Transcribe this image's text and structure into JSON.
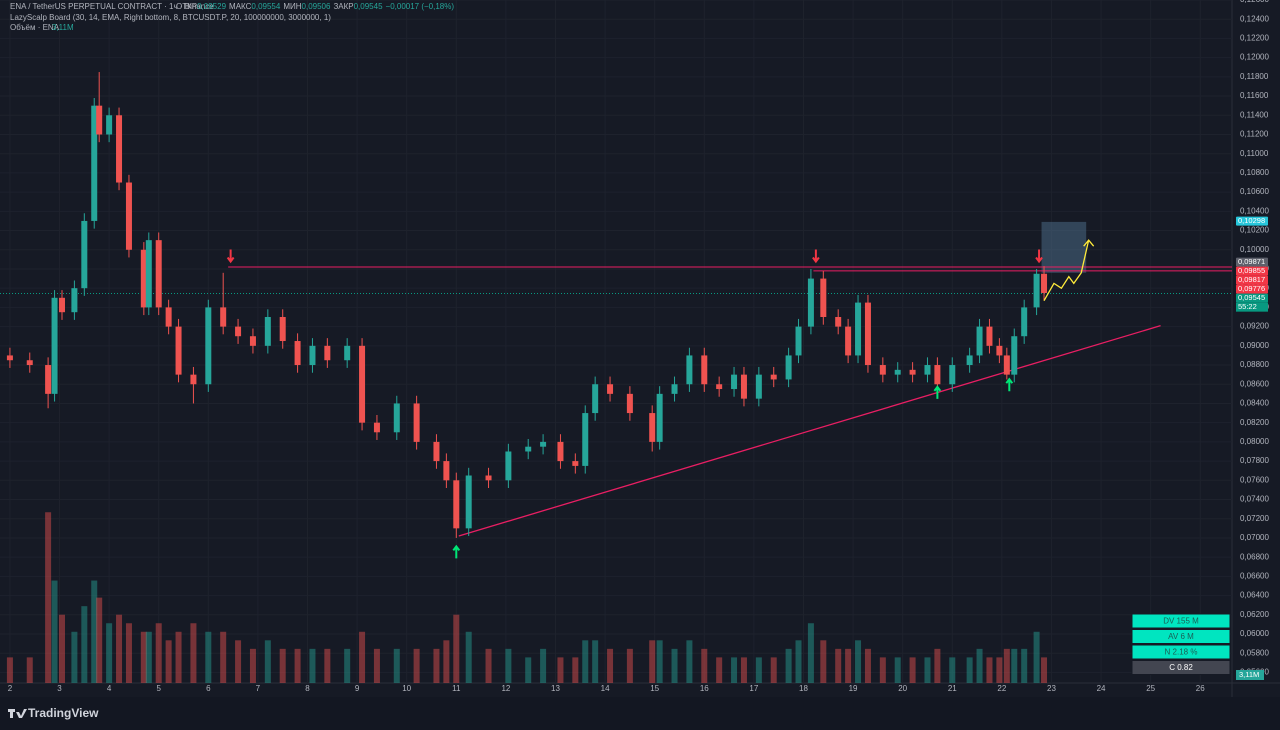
{
  "chart_data": {
    "type": "candlestick",
    "title": "ENA / TetherUS PERPETUAL CONTRACT · 1ч · Binance",
    "ohlc_header": [
      "ОТКР",
      "0,09529",
      "МАКС",
      "0,09554",
      "МИН",
      "0,09506",
      "ЗАКР",
      "0,09545",
      "−0,00017 (−0,18%)"
    ],
    "indicator": "LazyScalp Board (30, 14, EMA, Right bottom, 8, BTCUSDT.P, 20, 100000000, 3000000, 1)",
    "volume_title": "Объём · ENA",
    "volume_value": "3,11M",
    "xlim": [
      1.8,
      26.64
    ],
    "xticks": [
      2,
      3,
      4,
      5,
      6,
      7,
      8,
      9,
      10,
      11,
      12,
      13,
      14,
      15,
      16,
      17,
      18,
      19,
      20,
      21,
      22,
      23,
      24,
      25,
      26
    ],
    "ylim": [
      0.0549,
      0.126
    ],
    "yticks": [
      {
        "value": 0.056,
        "label": "0,05600"
      },
      {
        "value": 0.058,
        "label": "0,05800"
      },
      {
        "value": 0.06,
        "label": "0,06000"
      },
      {
        "value": 0.062,
        "label": "0,06200"
      },
      {
        "value": 0.064,
        "label": "0,06400"
      },
      {
        "value": 0.066,
        "label": "0,06600"
      },
      {
        "value": 0.068,
        "label": "0,06800"
      },
      {
        "value": 0.07,
        "label": "0,07000"
      },
      {
        "value": 0.072,
        "label": "0,07200"
      },
      {
        "value": 0.074,
        "label": "0,07400"
      },
      {
        "value": 0.076,
        "label": "0,07600"
      },
      {
        "value": 0.078,
        "label": "0,07800"
      },
      {
        "value": 0.08,
        "label": "0,08000"
      },
      {
        "value": 0.082,
        "label": "0,08200"
      },
      {
        "value": 0.084,
        "label": "0,08400"
      },
      {
        "value": 0.086,
        "label": "0,08600"
      },
      {
        "value": 0.088,
        "label": "0,08800"
      },
      {
        "value": 0.09,
        "label": "0,09000"
      },
      {
        "value": 0.092,
        "label": "0,09200"
      },
      {
        "value": 0.094,
        "label": "0,09400"
      },
      {
        "value": 0.096,
        "label": "0,09600"
      },
      {
        "value": 0.098,
        "label": "0,09800"
      },
      {
        "value": 0.1,
        "label": "0,10000"
      },
      {
        "value": 0.102,
        "label": "0,10200"
      },
      {
        "value": 0.104,
        "label": "0,10400"
      },
      {
        "value": 0.106,
        "label": "0,10600"
      },
      {
        "value": 0.108,
        "label": "0,10800"
      },
      {
        "value": 0.11,
        "label": "0,11000"
      },
      {
        "value": 0.112,
        "label": "0,11200"
      },
      {
        "value": 0.114,
        "label": "0,11400"
      },
      {
        "value": 0.116,
        "label": "0,11600"
      },
      {
        "value": 0.118,
        "label": "0,11800"
      },
      {
        "value": 0.12,
        "label": "0,12000"
      },
      {
        "value": 0.122,
        "label": "0,12200"
      },
      {
        "value": 0.124,
        "label": "0,12400"
      },
      {
        "value": 0.126,
        "label": "0,12600"
      }
    ],
    "grid": true,
    "up_color": "#26a69a",
    "down_color": "#ef5350",
    "x": [
      2.0,
      2.4,
      2.77,
      2.9,
      3.05,
      3.3,
      3.5,
      3.7,
      3.8,
      4.0,
      4.2,
      4.4,
      4.7,
      4.8,
      5.0,
      5.2,
      5.4,
      5.7,
      6.0,
      6.3,
      6.6,
      6.9,
      7.2,
      7.5,
      7.8,
      8.1,
      8.4,
      8.8,
      9.1,
      9.4,
      9.8,
      10.2,
      10.6,
      10.8,
      11.0,
      11.25,
      11.65,
      12.05,
      12.45,
      12.75,
      13.1,
      13.4,
      13.6,
      13.8,
      14.1,
      14.5,
      14.95,
      15.1,
      15.4,
      15.7,
      16.0,
      16.3,
      16.6,
      16.8,
      17.1,
      17.4,
      17.7,
      17.9,
      18.15,
      18.4,
      18.7,
      18.9,
      19.1,
      19.3,
      19.6,
      19.9,
      20.2,
      20.5,
      20.7,
      21.0,
      21.35,
      21.55,
      21.75,
      21.95,
      22.1,
      22.25,
      22.45,
      22.7,
      22.85
    ],
    "open": [
      0.089,
      0.0885,
      0.088,
      0.085,
      0.095,
      0.0935,
      0.096,
      0.103,
      0.115,
      0.112,
      0.114,
      0.107,
      0.1,
      0.094,
      0.101,
      0.094,
      0.092,
      0.087,
      0.086,
      0.094,
      0.092,
      0.091,
      0.09,
      0.093,
      0.0905,
      0.088,
      0.09,
      0.0885,
      0.09,
      0.082,
      0.081,
      0.084,
      0.08,
      0.078,
      0.076,
      0.071,
      0.0765,
      0.076,
      0.079,
      0.0795,
      0.08,
      0.078,
      0.0775,
      0.083,
      0.086,
      0.085,
      0.083,
      0.08,
      0.085,
      0.086,
      0.089,
      0.086,
      0.0855,
      0.087,
      0.0845,
      0.087,
      0.0865,
      0.089,
      0.092,
      0.097,
      0.093,
      0.092,
      0.089,
      0.0945,
      0.088,
      0.087,
      0.0875,
      0.087,
      0.088,
      0.086,
      0.088,
      0.089,
      0.092,
      0.09,
      0.089,
      0.087,
      0.091,
      0.094,
      0.0975
    ],
    "high": [
      0.0898,
      0.0893,
      0.0888,
      0.0958,
      0.0958,
      0.0968,
      0.1038,
      0.1158,
      0.1185,
      0.1148,
      0.1148,
      0.1078,
      0.1008,
      0.1018,
      0.1018,
      0.0948,
      0.0928,
      0.0878,
      0.0948,
      0.0976,
      0.0928,
      0.0918,
      0.0938,
      0.0938,
      0.0913,
      0.0908,
      0.0908,
      0.0908,
      0.0908,
      0.0828,
      0.0848,
      0.0848,
      0.0808,
      0.0788,
      0.0768,
      0.0773,
      0.0773,
      0.0798,
      0.0803,
      0.0808,
      0.0808,
      0.0788,
      0.0838,
      0.0868,
      0.0868,
      0.0858,
      0.0838,
      0.0858,
      0.0868,
      0.0898,
      0.0898,
      0.0868,
      0.0878,
      0.0878,
      0.0878,
      0.0878,
      0.0898,
      0.0928,
      0.098,
      0.0978,
      0.0938,
      0.0928,
      0.0953,
      0.0953,
      0.0888,
      0.0883,
      0.0883,
      0.0888,
      0.0888,
      0.0888,
      0.0898,
      0.0928,
      0.0928,
      0.0908,
      0.0898,
      0.0918,
      0.0948,
      0.098,
      0.0983
    ],
    "low": [
      0.0877,
      0.0872,
      0.0835,
      0.0842,
      0.0927,
      0.0927,
      0.0952,
      0.1022,
      0.1112,
      0.1112,
      0.1062,
      0.0992,
      0.0932,
      0.0932,
      0.0932,
      0.0912,
      0.0862,
      0.084,
      0.0852,
      0.0912,
      0.0902,
      0.0892,
      0.0892,
      0.0897,
      0.0872,
      0.0872,
      0.0877,
      0.0877,
      0.0812,
      0.0802,
      0.0802,
      0.0792,
      0.0772,
      0.0752,
      0.07,
      0.0702,
      0.0752,
      0.0752,
      0.0782,
      0.0787,
      0.0772,
      0.0767,
      0.0767,
      0.0822,
      0.0842,
      0.0822,
      0.079,
      0.0792,
      0.0842,
      0.0852,
      0.0852,
      0.0847,
      0.0847,
      0.0837,
      0.0837,
      0.0857,
      0.0857,
      0.0882,
      0.0912,
      0.0922,
      0.0912,
      0.0882,
      0.0882,
      0.0872,
      0.0862,
      0.0862,
      0.0862,
      0.0862,
      0.085,
      0.0852,
      0.0872,
      0.0882,
      0.0892,
      0.0882,
      0.0865,
      0.0862,
      0.0902,
      0.0932,
      0.0947
    ],
    "close": [
      0.0885,
      0.088,
      0.085,
      0.095,
      0.0935,
      0.096,
      0.103,
      0.115,
      0.112,
      0.114,
      0.107,
      0.1,
      0.094,
      0.101,
      0.094,
      0.092,
      0.087,
      0.086,
      0.094,
      0.092,
      0.091,
      0.09,
      0.093,
      0.0905,
      0.088,
      0.09,
      0.0885,
      0.09,
      0.082,
      0.081,
      0.084,
      0.08,
      0.078,
      0.076,
      0.071,
      0.0765,
      0.076,
      0.079,
      0.0795,
      0.08,
      0.078,
      0.0775,
      0.083,
      0.086,
      0.085,
      0.083,
      0.08,
      0.085,
      0.086,
      0.089,
      0.086,
      0.0855,
      0.087,
      0.0845,
      0.087,
      0.0865,
      0.089,
      0.092,
      0.097,
      0.093,
      0.092,
      0.089,
      0.0945,
      0.088,
      0.087,
      0.0875,
      0.087,
      0.088,
      0.086,
      0.088,
      0.089,
      0.092,
      0.09,
      0.089,
      0.087,
      0.091,
      0.094,
      0.0975,
      0.0955
    ],
    "volume": [
      3,
      3,
      20,
      12,
      8,
      6,
      9,
      12,
      10,
      7,
      8,
      7,
      6,
      6,
      7,
      5,
      6,
      7,
      6,
      6,
      5,
      4,
      5,
      4,
      4,
      4,
      4,
      4,
      6,
      4,
      4,
      4,
      4,
      5,
      8,
      6,
      4,
      4,
      3,
      4,
      3,
      3,
      5,
      5,
      4,
      4,
      5,
      5,
      4,
      5,
      4,
      3,
      3,
      3,
      3,
      3,
      4,
      5,
      7,
      5,
      4,
      4,
      5,
      4,
      3,
      3,
      3,
      3,
      4,
      3,
      3,
      4,
      3,
      3,
      4,
      4,
      4,
      6,
      3
    ],
    "volume_lim": [
      0,
      80
    ],
    "hlines": [
      {
        "y": 0.0982,
        "x": [
          6.4,
          26.64
        ]
      },
      {
        "y": 0.0978,
        "x": [
          18.2,
          26.64
        ]
      }
    ],
    "current_price": 0.09545,
    "trendline": {
      "x": [
        11.05,
        25.2
      ],
      "y": [
        0.0702,
        0.0921
      ]
    },
    "down_arrows": {
      "x": [
        6.45,
        18.25,
        22.75
      ],
      "y": [
        0.0994,
        0.0994,
        0.0994
      ]
    },
    "up_arrows": {
      "x": [
        11.0,
        20.7,
        22.15
      ],
      "y": [
        0.0685,
        0.0851,
        0.0859
      ]
    },
    "projection": {
      "x": [
        22.85,
        23.05,
        23.2,
        23.35,
        23.45,
        23.6,
        23.75
      ],
      "y": [
        0.0947,
        0.0965,
        0.096,
        0.0972,
        0.0965,
        0.0976,
        0.101
      ]
    },
    "target_box": {
      "x": [
        22.8,
        23.7
      ],
      "y": [
        0.0976,
        0.1029
      ]
    },
    "price_labels": [
      {
        "value": 0.10298,
        "label": "0,10298",
        "color": "#26c6da"
      },
      {
        "value": 0.09871,
        "label": "0,09871",
        "color": "#5d606b"
      },
      {
        "value": 0.09855,
        "label": "0,09855",
        "color": "#f23645"
      },
      {
        "value": 0.09817,
        "label": "0,09817",
        "color": "#f23645"
      },
      {
        "value": 0.09776,
        "label": "0,09776",
        "color": "#f23645"
      },
      {
        "value": 0.09545,
        "label": "0,09545",
        "color": "#089981"
      }
    ],
    "countdown": "55:22"
  },
  "panel": {
    "rows": [
      "DV 155 M",
      "AV 6 M",
      "N 2.18 %",
      "C  0.82"
    ]
  },
  "logo": "TradingView"
}
